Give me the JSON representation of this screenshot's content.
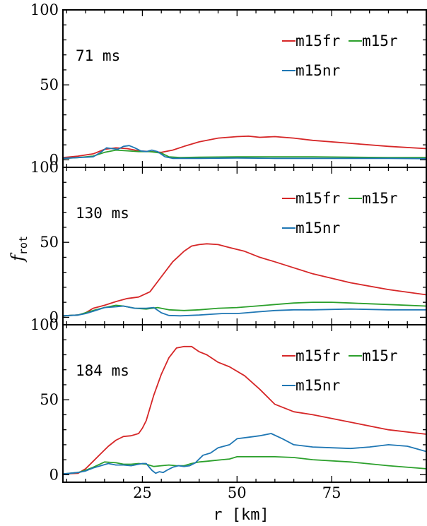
{
  "figure": {
    "ylabel_main": "f",
    "ylabel_sub": "rot",
    "xlabel": "r [km]"
  },
  "chart_data": [
    {
      "type": "line",
      "annotation": "71 ms",
      "xlim": [
        4,
        100
      ],
      "ylim": [
        -5,
        100
      ],
      "yticks": [
        0,
        50,
        100
      ],
      "xticks": [
        25,
        50,
        75
      ],
      "legend_position": "top-right",
      "series": [
        {
          "name": "m15fr",
          "color": "#d62728",
          "x": [
            4,
            8,
            12,
            15,
            18,
            21,
            24,
            27,
            30,
            33,
            36,
            40,
            45,
            50,
            53,
            56,
            60,
            65,
            70,
            80,
            90,
            100
          ],
          "y": [
            1.5,
            2.5,
            4,
            7,
            8,
            7.5,
            6,
            5.5,
            5,
            6.5,
            9,
            12,
            14.5,
            15.5,
            15.8,
            15,
            15.5,
            14.5,
            13,
            11,
            9,
            7.5
          ]
        },
        {
          "name": "m15r",
          "color": "#2ca02c",
          "x": [
            4,
            8,
            12,
            15,
            18,
            21,
            24,
            27,
            30,
            32,
            35,
            40,
            50,
            60,
            70,
            80,
            90,
            100
          ],
          "y": [
            1,
            1.5,
            2.5,
            5,
            6.5,
            6,
            5.5,
            5.5,
            4.5,
            2,
            1.5,
            1.8,
            2,
            2,
            2,
            1.8,
            1.5,
            1.5
          ]
        },
        {
          "name": "m15nr",
          "color": "#1f77b4",
          "x": [
            4,
            8,
            12,
            14,
            15.5,
            17,
            18.5,
            20,
            21.5,
            23,
            24.5,
            26,
            27.5,
            29,
            31,
            33,
            40,
            50,
            60,
            70,
            80,
            90,
            100
          ],
          "y": [
            1,
            1.5,
            2,
            5,
            8,
            7.5,
            7,
            9,
            9.5,
            8,
            6,
            5.5,
            6.5,
            5.5,
            2,
            1,
            1,
            1.2,
            1,
            1,
            1,
            1,
            0.8
          ]
        }
      ]
    },
    {
      "type": "line",
      "annotation": "130 ms",
      "xlim": [
        4,
        100
      ],
      "ylim": [
        -5,
        100
      ],
      "yticks": [
        0,
        50,
        100
      ],
      "xticks": [
        25,
        50,
        75
      ],
      "legend_position": "top-right",
      "series": [
        {
          "name": "m15fr",
          "color": "#d62728",
          "x": [
            4,
            8,
            10,
            12,
            15,
            18,
            21,
            24,
            27,
            30,
            33,
            36,
            38,
            40,
            42,
            45,
            48,
            52,
            56,
            60,
            65,
            70,
            80,
            90,
            100
          ],
          "y": [
            1,
            1.5,
            3,
            6,
            8,
            10.5,
            12.5,
            13.5,
            17,
            27,
            37,
            44,
            47.5,
            48.5,
            49,
            48.5,
            46.5,
            44,
            40,
            37,
            33,
            29,
            23,
            18.5,
            15
          ]
        },
        {
          "name": "m15r",
          "color": "#2ca02c",
          "x": [
            4,
            8,
            10,
            12,
            15,
            18,
            20,
            23,
            26,
            29,
            32,
            36,
            40,
            45,
            50,
            55,
            60,
            65,
            70,
            75,
            80,
            90,
            100
          ],
          "y": [
            1,
            1.5,
            3,
            4.5,
            6.5,
            8,
            7.5,
            6,
            5.5,
            6.5,
            5,
            4.5,
            5,
            6,
            6.5,
            7.5,
            8.5,
            9.5,
            10,
            10,
            9.5,
            8.5,
            7.5
          ]
        },
        {
          "name": "m15nr",
          "color": "#1f77b4",
          "x": [
            4,
            8,
            10,
            12,
            15,
            18,
            20,
            23,
            26,
            28,
            30,
            32,
            35,
            40,
            43,
            46,
            50,
            55,
            60,
            65,
            70,
            80,
            90,
            100
          ],
          "y": [
            1,
            1.5,
            2.5,
            4,
            6.5,
            7,
            7.5,
            6,
            6,
            6.5,
            3,
            1.2,
            1,
            1.5,
            2,
            2.5,
            2.5,
            3.5,
            4.5,
            5,
            5,
            5.5,
            5,
            5
          ]
        }
      ]
    },
    {
      "type": "line",
      "annotation": "184 ms",
      "xlim": [
        4,
        100
      ],
      "ylim": [
        -5,
        100
      ],
      "yticks": [
        0,
        50,
        100
      ],
      "xticks": [
        25,
        50,
        75
      ],
      "legend_position": "top-right",
      "series": [
        {
          "name": "m15fr",
          "color": "#d62728",
          "x": [
            4,
            8,
            10,
            12,
            14,
            16,
            18,
            20,
            22,
            24,
            25,
            26,
            28,
            30,
            32,
            34,
            36,
            38,
            40,
            42,
            45,
            48,
            52,
            56,
            60,
            65,
            70,
            80,
            90,
            100
          ],
          "y": [
            0.5,
            1,
            4,
            9,
            14,
            19,
            23,
            25.5,
            26,
            27.5,
            31,
            36,
            53,
            67,
            78,
            84.5,
            85.5,
            85.5,
            82,
            80,
            75,
            72,
            66,
            57,
            47,
            42,
            40,
            35,
            30,
            27
          ]
        },
        {
          "name": "m15r",
          "color": "#2ca02c",
          "x": [
            4,
            8,
            10,
            12,
            15,
            18,
            20,
            22,
            24,
            26,
            28,
            30,
            32,
            34,
            36,
            38,
            40,
            42,
            44,
            46,
            48,
            50,
            55,
            60,
            65,
            70,
            80,
            90,
            100
          ],
          "y": [
            0.5,
            1.5,
            3,
            5,
            8.5,
            8,
            7,
            7,
            7.5,
            7,
            5.5,
            6,
            6.5,
            6,
            6,
            7.5,
            8.5,
            9,
            9.5,
            10,
            10.5,
            12,
            12,
            12,
            11.5,
            10,
            8.5,
            6,
            4
          ]
        },
        {
          "name": "m15nr",
          "color": "#1f77b4",
          "x": [
            4,
            8,
            10,
            12,
            14,
            16,
            18,
            20,
            22,
            24,
            25,
            26,
            27.5,
            28.5,
            29.5,
            30.5,
            31.5,
            33,
            34.5,
            36,
            37.5,
            39,
            41,
            43,
            45,
            48,
            50,
            53,
            56,
            59,
            62,
            65,
            70,
            75,
            80,
            85,
            90,
            95,
            100
          ],
          "y": [
            0.5,
            1.5,
            2.5,
            4.5,
            6,
            7.5,
            6.5,
            6.5,
            6,
            7,
            7.5,
            7.5,
            3,
            1,
            2,
            1.5,
            3,
            5,
            6,
            5.5,
            6,
            8,
            13,
            14.5,
            18,
            20,
            24,
            25,
            26,
            27.5,
            24,
            20,
            18.5,
            18,
            17.5,
            18.5,
            20,
            19,
            15.5
          ]
        }
      ]
    }
  ]
}
